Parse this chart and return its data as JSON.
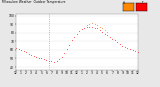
{
  "title": "Milwaukee Weather  Outdoor Temperature",
  "background_color": "#e8e8e8",
  "plot_bg": "#ffffff",
  "dot_color": "#ff0000",
  "legend_box1_color": "#ff8800",
  "legend_box2_color": "#ff0000",
  "ylim": [
    37,
    102
  ],
  "xlim": [
    0,
    1440
  ],
  "temperature_data": [
    [
      0,
      62
    ],
    [
      30,
      61
    ],
    [
      60,
      60
    ],
    [
      90,
      59
    ],
    [
      120,
      57
    ],
    [
      150,
      55
    ],
    [
      180,
      54
    ],
    [
      210,
      53
    ],
    [
      240,
      52
    ],
    [
      270,
      51
    ],
    [
      300,
      50
    ],
    [
      330,
      49
    ],
    [
      360,
      48
    ],
    [
      390,
      47
    ],
    [
      420,
      47
    ],
    [
      450,
      46
    ],
    [
      480,
      47
    ],
    [
      510,
      49
    ],
    [
      540,
      52
    ],
    [
      570,
      56
    ],
    [
      600,
      61
    ],
    [
      630,
      66
    ],
    [
      660,
      71
    ],
    [
      690,
      75
    ],
    [
      720,
      79
    ],
    [
      750,
      82
    ],
    [
      780,
      84
    ],
    [
      810,
      86
    ],
    [
      840,
      87
    ],
    [
      870,
      87
    ],
    [
      900,
      87
    ],
    [
      930,
      86
    ],
    [
      960,
      85
    ],
    [
      990,
      83
    ],
    [
      1020,
      81
    ],
    [
      1050,
      79
    ],
    [
      1080,
      77
    ],
    [
      1110,
      75
    ],
    [
      1140,
      73
    ],
    [
      1170,
      71
    ],
    [
      1200,
      69
    ],
    [
      1230,
      67
    ],
    [
      1260,
      65
    ],
    [
      1290,
      63
    ],
    [
      1320,
      62
    ],
    [
      1350,
      61
    ],
    [
      1380,
      60
    ],
    [
      1410,
      59
    ],
    [
      1440,
      58
    ]
  ],
  "heat_index_data": [
    [
      840,
      89
    ],
    [
      870,
      90
    ],
    [
      900,
      91
    ],
    [
      930,
      90
    ],
    [
      960,
      89
    ],
    [
      990,
      87
    ],
    [
      1020,
      85
    ],
    [
      1050,
      83
    ],
    [
      1080,
      81
    ]
  ],
  "dotted_line_x": 390,
  "ytick_vals": [
    40,
    50,
    60,
    70,
    80,
    90,
    100
  ],
  "hour_positions": [
    0,
    60,
    120,
    180,
    240,
    300,
    360,
    420,
    480,
    540,
    600,
    660,
    720,
    780,
    840,
    900,
    960,
    1020,
    1080,
    1140,
    1200,
    1260,
    1320,
    1380,
    1440
  ],
  "hour_labels": [
    "12",
    "1",
    "2",
    "3",
    "4",
    "5",
    "6",
    "7",
    "8",
    "9",
    "10",
    "11",
    "12",
    "1",
    "2",
    "3",
    "4",
    "5",
    "6",
    "7",
    "8",
    "9",
    "10",
    "11",
    "12"
  ]
}
